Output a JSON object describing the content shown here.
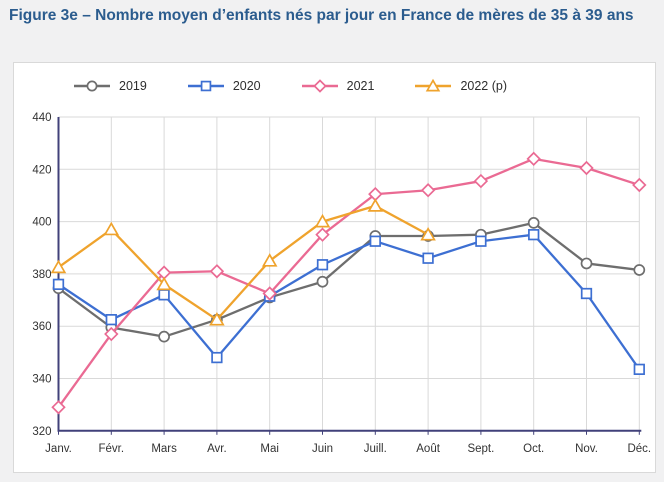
{
  "page": {
    "title": "Figure 3e – Nombre moyen d’enfants nés par jour en France de mères de 35 à 39 ans"
  },
  "chart_data": {
    "type": "line",
    "title": "Figure 3e – Nombre moyen d’enfants nés par jour en France de mères de 35 à 39 ans",
    "xlabel": "",
    "ylabel": "",
    "x": [
      "Janv.",
      "Févr.",
      "Mars",
      "Avr.",
      "Mai",
      "Juin",
      "Juill.",
      "Août",
      "Sept.",
      "Oct.",
      "Nov.",
      "Déc."
    ],
    "ylim": [
      320,
      440
    ],
    "yticks": [
      320,
      340,
      360,
      380,
      400,
      420,
      440
    ],
    "grid": true,
    "legend_position": "top",
    "series": [
      {
        "name": "2019",
        "marker": "circle",
        "color": "#6e6e6e",
        "values": [
          374.5,
          359.5,
          356,
          362.5,
          371,
          377,
          394.5,
          394.5,
          395,
          399.5,
          384,
          381.5
        ]
      },
      {
        "name": "2020",
        "marker": "square",
        "color": "#3d6fd2",
        "values": [
          376,
          362.5,
          372,
          348,
          371.5,
          383.5,
          392.5,
          386,
          392.5,
          395,
          372.5,
          343.5
        ]
      },
      {
        "name": "2021",
        "marker": "diamond",
        "color": "#ea6a93",
        "values": [
          329,
          357,
          380.5,
          381,
          372.5,
          395,
          410.5,
          412,
          415.5,
          424,
          420.5,
          414
        ]
      },
      {
        "name": "2022 (p)",
        "marker": "triangle",
        "color": "#efa32d",
        "values": [
          382.5,
          397,
          376,
          362.5,
          385,
          400,
          406,
          395,
          null,
          null,
          null,
          null
        ]
      }
    ],
    "colors": {
      "axis": "#41417a",
      "gridline": "#d9d9d9",
      "tick_label": "#333333",
      "title": "#2b5c8e"
    }
  }
}
